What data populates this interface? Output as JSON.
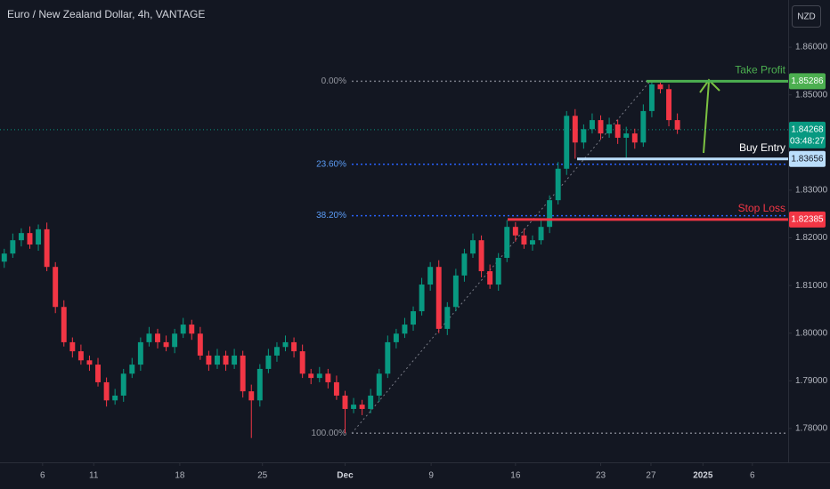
{
  "chart_data": {
    "type": "candlestick",
    "title": "Euro / New Zealand Dollar, 4h, VANTAGE",
    "currency": "NZD",
    "up_color": "#089981",
    "down_color": "#f23645",
    "open": [
      1.815,
      1.8167,
      1.8195,
      1.821,
      1.8186,
      1.8218,
      1.8139,
      1.8055,
      1.7981,
      1.7962,
      1.7943,
      1.7934,
      1.7897,
      1.7859,
      1.7869,
      1.7915,
      1.7934,
      1.7981,
      1.7999,
      1.7981,
      1.7971,
      1.7999,
      1.8018,
      1.7999,
      1.7953,
      1.7934,
      1.7953,
      1.7934,
      1.7953,
      1.7878,
      1.7859,
      1.7925,
      1.7953,
      1.7971,
      1.7981,
      1.7962,
      1.7915,
      1.7906,
      1.7915,
      1.7897,
      1.7869,
      1.7841,
      1.785,
      1.7841,
      1.7869,
      1.7915,
      1.7981,
      1.7999,
      1.8018,
      1.8046,
      1.8102,
      1.8139,
      1.8009,
      1.8055,
      1.8121,
      1.8167,
      1.8195,
      1.813,
      1.8102,
      1.8158,
      1.8223,
      1.8205,
      1.8186,
      1.8195,
      1.8223,
      1.8279,
      1.8345,
      1.8456,
      1.84,
      1.8428,
      1.8447,
      1.8419,
      1.8438,
      1.841,
      1.8419,
      1.84,
      1.8466,
      1.8522,
      1.8512,
      1.8447
    ],
    "high": [
      1.8177,
      1.8209,
      1.822,
      1.8224,
      1.8228,
      1.8232,
      1.8149,
      1.8069,
      1.7991,
      1.7976,
      1.7953,
      1.7948,
      1.7907,
      1.7883,
      1.7925,
      1.7948,
      1.7991,
      1.8013,
      1.8009,
      1.7995,
      1.8009,
      1.8032,
      1.8028,
      1.8013,
      1.7963,
      1.7967,
      1.7963,
      1.7967,
      1.7963,
      1.7892,
      1.7935,
      1.7967,
      1.7981,
      1.7995,
      1.7991,
      1.7976,
      1.7925,
      1.7929,
      1.7925,
      1.7911,
      1.7879,
      1.7864,
      1.786,
      1.7883,
      1.7925,
      1.7995,
      1.8009,
      1.8032,
      1.8056,
      1.8116,
      1.8149,
      1.8153,
      1.8065,
      1.8135,
      1.8177,
      1.8209,
      1.8205,
      1.8144,
      1.8168,
      1.8237,
      1.8233,
      1.8219,
      1.8205,
      1.8237,
      1.8289,
      1.8359,
      1.8466,
      1.847,
      1.8438,
      1.8461,
      1.8457,
      1.8452,
      1.8448,
      1.8433,
      1.8429,
      1.848,
      1.8529,
      1.8526,
      1.8522,
      1.8461
    ],
    "low": [
      1.8137,
      1.8158,
      1.8182,
      1.8177,
      1.8173,
      1.813,
      1.8042,
      1.7972,
      1.7949,
      1.7934,
      1.7921,
      1.7888,
      1.7846,
      1.785,
      1.7856,
      1.7906,
      1.7921,
      1.7972,
      1.7968,
      1.7962,
      1.7958,
      1.799,
      1.7986,
      1.7944,
      1.7921,
      1.7925,
      1.7921,
      1.7925,
      1.7865,
      1.778,
      1.7846,
      1.7916,
      1.794,
      1.7962,
      1.7949,
      1.7906,
      1.7893,
      1.7897,
      1.7884,
      1.786,
      1.779,
      1.7832,
      1.7828,
      1.7832,
      1.7856,
      1.7906,
      1.7968,
      1.799,
      1.8005,
      1.8037,
      1.8089,
      1.8,
      1.7996,
      1.8046,
      1.8108,
      1.8158,
      1.8117,
      1.8093,
      1.8089,
      1.8149,
      1.8192,
      1.8177,
      1.8173,
      1.8186,
      1.821,
      1.827,
      1.8332,
      1.8366,
      1.8387,
      1.8419,
      1.8406,
      1.841,
      1.8397,
      1.8365,
      1.8387,
      1.8391,
      1.8453,
      1.8503,
      1.8434,
      1.8418
    ],
    "close": [
      1.8167,
      1.8195,
      1.821,
      1.8186,
      1.8218,
      1.8139,
      1.8055,
      1.7981,
      1.7962,
      1.7943,
      1.7934,
      1.7897,
      1.7859,
      1.7869,
      1.7915,
      1.7934,
      1.7981,
      1.7999,
      1.7981,
      1.7971,
      1.7999,
      1.8018,
      1.7999,
      1.7953,
      1.7934,
      1.7953,
      1.7934,
      1.7953,
      1.7878,
      1.7859,
      1.7925,
      1.7953,
      1.7971,
      1.7981,
      1.7962,
      1.7915,
      1.7906,
      1.7915,
      1.7897,
      1.7869,
      1.7841,
      1.785,
      1.7841,
      1.7869,
      1.7915,
      1.7981,
      1.7999,
      1.8018,
      1.8046,
      1.8102,
      1.8139,
      1.8009,
      1.8055,
      1.8121,
      1.8167,
      1.8195,
      1.813,
      1.8102,
      1.8158,
      1.8223,
      1.8205,
      1.8186,
      1.8195,
      1.8223,
      1.8279,
      1.8345,
      1.8456,
      1.84,
      1.8428,
      1.8447,
      1.8419,
      1.8438,
      1.841,
      1.8419,
      1.84,
      1.8466,
      1.8522,
      1.8512,
      1.8447,
      1.8427
    ],
    "xlim": [
      -0.5,
      92
    ],
    "xticks": [
      {
        "value": 4.5,
        "label": "6"
      },
      {
        "value": 10.5,
        "label": "11"
      },
      {
        "value": 20.6,
        "label": "18"
      },
      {
        "value": 30.3,
        "label": "25"
      },
      {
        "value": 40,
        "label": "Dec"
      },
      {
        "value": 50.1,
        "label": "9"
      },
      {
        "value": 60,
        "label": "16"
      },
      {
        "value": 70,
        "label": "23"
      },
      {
        "value": 75.9,
        "label": "27"
      },
      {
        "value": 82,
        "label": "2025"
      },
      {
        "value": 87.8,
        "label": "6"
      }
    ],
    "ylim": [
      1.7729,
      1.8699
    ],
    "yticks": [
      {
        "value": 1.78,
        "label": "1.78000"
      },
      {
        "value": 1.79,
        "label": "1.79000"
      },
      {
        "value": 1.8,
        "label": "1.80000"
      },
      {
        "value": 1.81,
        "label": "1.81000"
      },
      {
        "value": 1.82,
        "label": "1.82000"
      },
      {
        "value": 1.83,
        "label": "1.83000"
      },
      {
        "value": 1.85,
        "label": "1.85000"
      },
      {
        "value": 1.86,
        "label": "1.86000"
      }
    ],
    "fib_range": [
      1.85286,
      1.779
    ],
    "fib_levels": [
      {
        "value": 0,
        "label": "0.00%"
      },
      {
        "value": 23.6,
        "label": "23.60%"
      },
      {
        "value": 38.2,
        "label": "38.20%"
      },
      {
        "value": 100,
        "label": "100.00%"
      }
    ],
    "levels": [
      {
        "name": "Take Profit",
        "value": 1.85286,
        "color": "#4caf50"
      },
      {
        "name": "Buy Entry",
        "value": 1.83656,
        "color": "#bbdefb"
      },
      {
        "name": "Stop Loss",
        "value": 1.82385,
        "color": "#f23645"
      }
    ],
    "last_price": {
      "value": 1.84268,
      "countdown": "03:48:27",
      "color": "#089981"
    }
  }
}
